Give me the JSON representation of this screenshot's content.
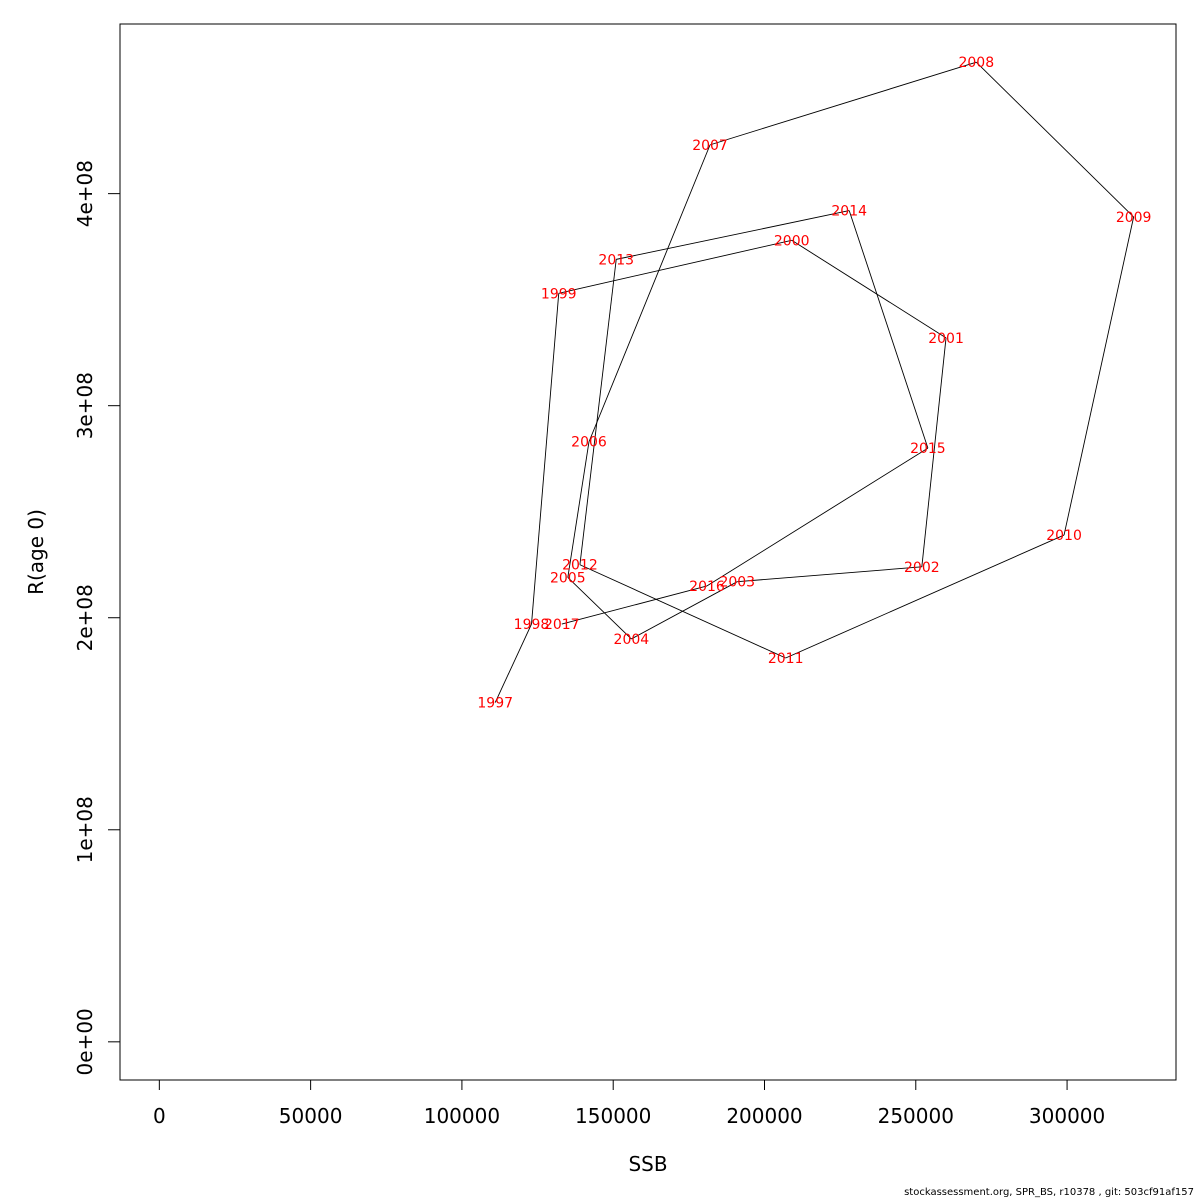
{
  "chart_data": {
    "type": "line",
    "xlabel": "SSB",
    "ylabel": "R(age 0)",
    "x_ticks": [
      "0",
      "50000",
      "100000",
      "150000",
      "200000",
      "250000",
      "300000"
    ],
    "y_ticks": [
      "0e+00",
      "1e+08",
      "2e+08",
      "3e+08",
      "4e+08"
    ],
    "xlim": [
      -13000,
      336000
    ],
    "ylim": [
      -18000000,
      480000000
    ],
    "grid": false,
    "legend": "none",
    "line_color": "#000000",
    "label_color": "#ff0000",
    "points": [
      {
        "year": "1997",
        "x": 111000,
        "y": 160000000
      },
      {
        "year": "1998",
        "x": 123000,
        "y": 197000000
      },
      {
        "year": "1999",
        "x": 132000,
        "y": 353000000
      },
      {
        "year": "2000",
        "x": 209000,
        "y": 378000000
      },
      {
        "year": "2001",
        "x": 260000,
        "y": 332000000
      },
      {
        "year": "2002",
        "x": 252000,
        "y": 224000000
      },
      {
        "year": "2003",
        "x": 191000,
        "y": 217000000
      },
      {
        "year": "2004",
        "x": 156000,
        "y": 190000000
      },
      {
        "year": "2005",
        "x": 135000,
        "y": 219000000
      },
      {
        "year": "2006",
        "x": 142000,
        "y": 283000000
      },
      {
        "year": "2007",
        "x": 182000,
        "y": 423000000
      },
      {
        "year": "2008",
        "x": 270000,
        "y": 462000000
      },
      {
        "year": "2009",
        "x": 322000,
        "y": 389000000
      },
      {
        "year": "2010",
        "x": 299000,
        "y": 239000000
      },
      {
        "year": "2011",
        "x": 207000,
        "y": 181000000
      },
      {
        "year": "2012",
        "x": 139000,
        "y": 225000000
      },
      {
        "year": "2013",
        "x": 151000,
        "y": 369000000
      },
      {
        "year": "2014",
        "x": 228000,
        "y": 392000000
      },
      {
        "year": "2015",
        "x": 254000,
        "y": 280000000
      },
      {
        "year": "2016",
        "x": 181000,
        "y": 215000000
      },
      {
        "year": "2017",
        "x": 133000,
        "y": 197000000
      }
    ]
  },
  "footer_text": "stockassessment.org, SPR_BS, r10378 , git: 503cf91af157"
}
